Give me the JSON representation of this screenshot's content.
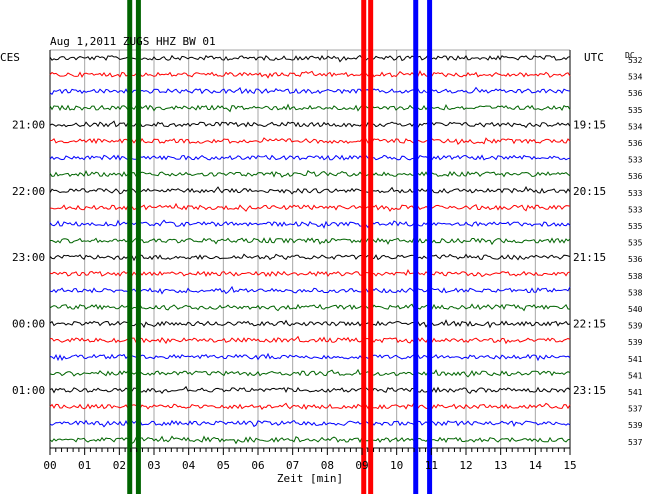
{
  "chart_data": {
    "type": "line",
    "title": "Aug 1,2011  ZUGS HHZ BW 01",
    "left_timezone": "CES",
    "right_timezone": "UTC",
    "dc_header": "DC",
    "xlabel": "Zeit [min]",
    "xlim": [
      0,
      15
    ],
    "x_ticks": [
      "00",
      "01",
      "02",
      "03",
      "04",
      "05",
      "06",
      "07",
      "08",
      "09",
      "10",
      "11",
      "12",
      "13",
      "14",
      "15"
    ],
    "trace_count": 24,
    "trace_colors_cycle": [
      "#000000",
      "#ff0000",
      "#0000ff",
      "#006400"
    ],
    "left_hour_labels": [
      {
        "row": 4,
        "text": "21:00"
      },
      {
        "row": 8,
        "text": "22:00"
      },
      {
        "row": 12,
        "text": "23:00"
      },
      {
        "row": 16,
        "text": "00:00"
      },
      {
        "row": 20,
        "text": "01:00"
      }
    ],
    "right_hour_labels": [
      {
        "row": 4,
        "text": "19:15"
      },
      {
        "row": 8,
        "text": "20:15"
      },
      {
        "row": 12,
        "text": "21:15"
      },
      {
        "row": 16,
        "text": "22:15"
      },
      {
        "row": 20,
        "text": "23:15"
      }
    ],
    "dc_values": [
      532,
      534,
      536,
      535,
      534,
      536,
      533,
      536,
      533,
      533,
      535,
      535,
      536,
      538,
      538,
      540,
      539,
      539,
      541,
      541,
      541,
      537,
      539,
      537
    ],
    "events": [
      {
        "x_min": 2.3,
        "color": "#006400"
      },
      {
        "x_min": 2.55,
        "color": "#006400"
      },
      {
        "x_min": 9.05,
        "color": "#ff0000"
      },
      {
        "x_min": 9.25,
        "color": "#ff0000"
      },
      {
        "x_min": 10.55,
        "color": "#0000ff"
      },
      {
        "x_min": 10.95,
        "color": "#0000ff"
      }
    ],
    "grid": true
  }
}
